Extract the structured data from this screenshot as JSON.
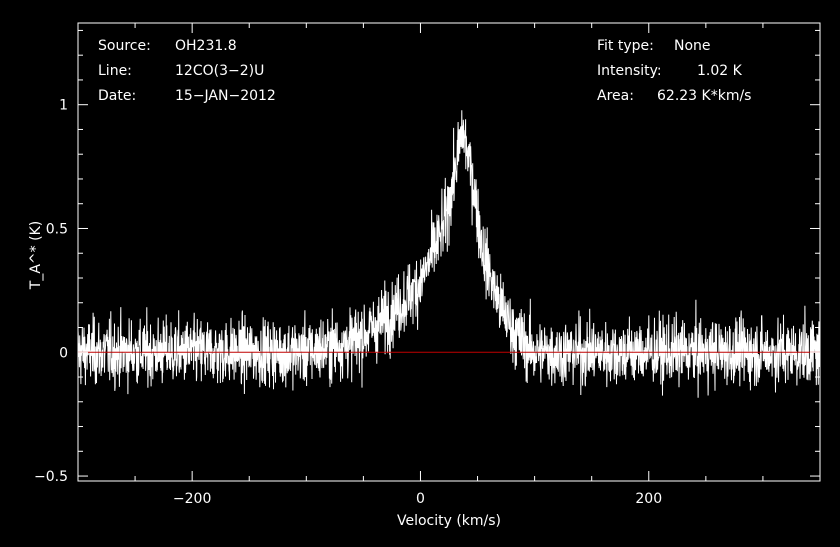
{
  "chart_data": {
    "type": "line",
    "xlabel": "Velocity (km/s)",
    "ylabel": "T_A^* (K)",
    "xlim": [
      -300,
      350
    ],
    "ylim": [
      -0.52,
      1.33
    ],
    "xticks": [
      -200,
      0,
      200
    ],
    "yticks": [
      -0.5,
      0,
      0.5,
      1
    ],
    "xtick_labels": [
      "−200",
      "0",
      "200"
    ],
    "ytick_labels": [
      "−0.5",
      "0",
      "0.5",
      "1"
    ],
    "baseline": 0,
    "baseline_color": "#c00000",
    "series_color": "#ffffff",
    "series": [
      {
        "profile_x": [
          -300,
          -100,
          -60,
          -40,
          -20,
          0,
          20,
          30,
          37,
          45,
          55,
          70,
          85,
          100,
          150,
          350
        ],
        "profile_y": [
          0.0,
          0.0,
          0.04,
          0.1,
          0.18,
          0.28,
          0.5,
          0.72,
          0.9,
          0.72,
          0.4,
          0.18,
          0.06,
          0.0,
          0.0,
          0.0
        ],
        "noise_rms": 0.12,
        "channel_width_kms": 0.25
      }
    ],
    "info_left": [
      {
        "key": "Source:",
        "value": "OH231.8"
      },
      {
        "key": "Line:",
        "value": "12CO(3−2)U"
      },
      {
        "key": "Date:",
        "value": "15−JAN−2012"
      }
    ],
    "info_right": [
      {
        "key": "Fit type:",
        "value": "None"
      },
      {
        "key": "Intensity:",
        "value": "1.02 K"
      },
      {
        "key": "Area:",
        "value": "62.23 K*km/s"
      }
    ]
  }
}
